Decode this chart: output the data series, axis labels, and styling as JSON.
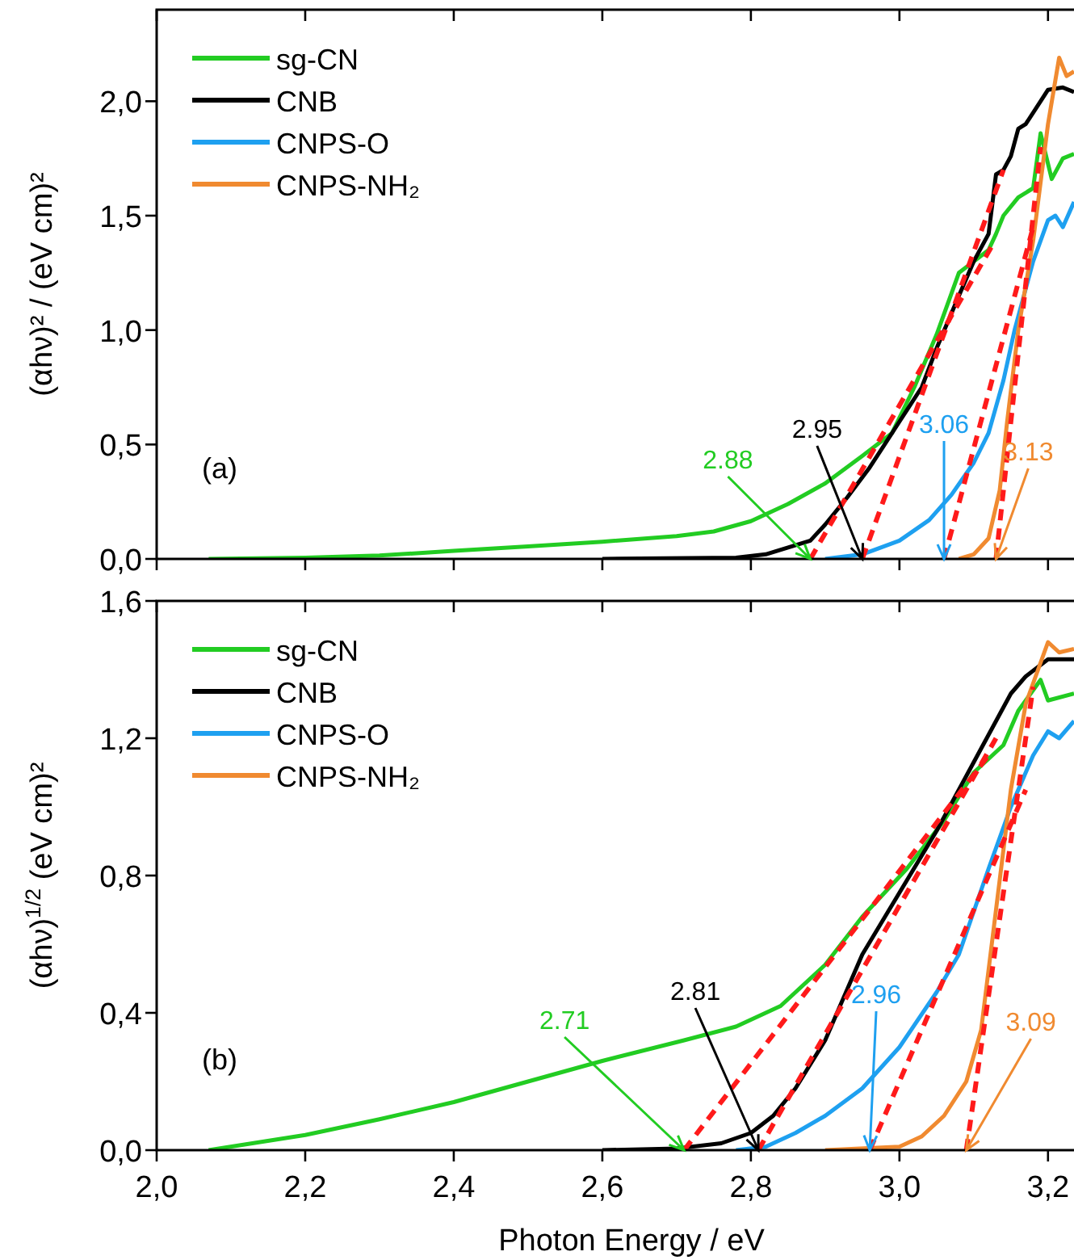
{
  "chart_data": [
    {
      "type": "line",
      "ylabel": "(αhν)² / (eV cm)²",
      "xlim": [
        2.0,
        3.235
      ],
      "ylim": [
        0,
        2.4
      ],
      "xticks": [
        2.0,
        2.2,
        2.4,
        2.6,
        2.8,
        3.0,
        3.2
      ],
      "yticks": [
        {
          "value": 0,
          "label": "0,0"
        },
        {
          "value": 0.5,
          "label": "0,5"
        },
        {
          "value": 1.0,
          "label": "1,0"
        },
        {
          "value": 1.5,
          "label": "1,5"
        },
        {
          "value": 2.0,
          "label": "2,0"
        }
      ],
      "tick_labels": "y",
      "legend": "top left",
      "series": [
        {
          "name": "sg-CN",
          "color": "#22cc22",
          "x": [
            2.07,
            2.2,
            2.3,
            2.4,
            2.5,
            2.6,
            2.7,
            2.75,
            2.8,
            2.85,
            2.9,
            2.95,
            2.99,
            3.02,
            3.05,
            3.08,
            3.1,
            3.12,
            3.13,
            3.14,
            3.16,
            3.18,
            3.19,
            3.205,
            3.22,
            3.235
          ],
          "values": [
            0,
            0.005,
            0.015,
            0.035,
            0.055,
            0.075,
            0.1,
            0.12,
            0.165,
            0.24,
            0.33,
            0.45,
            0.55,
            0.75,
            0.98,
            1.25,
            1.3,
            1.35,
            1.42,
            1.5,
            1.58,
            1.62,
            1.86,
            1.66,
            1.75,
            1.77
          ]
        },
        {
          "name": "CNB",
          "color": "#000000",
          "x": [
            2.6,
            2.78,
            2.82,
            2.85,
            2.88,
            2.9,
            2.93,
            2.96,
            2.98,
            3.0,
            3.03,
            3.05,
            3.08,
            3.1,
            3.12,
            3.13,
            3.14,
            3.15,
            3.16,
            3.17,
            3.19,
            3.2,
            3.22,
            3.235
          ],
          "values": [
            0,
            0.005,
            0.02,
            0.05,
            0.08,
            0.15,
            0.27,
            0.4,
            0.5,
            0.6,
            0.75,
            0.92,
            1.15,
            1.3,
            1.42,
            1.68,
            1.7,
            1.76,
            1.88,
            1.9,
            2.0,
            2.05,
            2.06,
            2.04
          ]
        },
        {
          "name": "CNPS-O",
          "color": "#1ea0f0",
          "x": [
            2.9,
            2.95,
            3.0,
            3.04,
            3.07,
            3.1,
            3.12,
            3.14,
            3.155,
            3.17,
            3.18,
            3.2,
            3.21,
            3.22,
            3.235
          ],
          "values": [
            0,
            0.02,
            0.08,
            0.17,
            0.28,
            0.42,
            0.55,
            0.78,
            1.0,
            1.18,
            1.3,
            1.48,
            1.5,
            1.45,
            1.56
          ]
        },
        {
          "name": "CNPS-NH₂",
          "color": "#f08a30",
          "x": [
            3.08,
            3.1,
            3.12,
            3.135,
            3.145,
            3.16,
            3.18,
            3.2,
            3.215,
            3.225,
            3.235
          ],
          "values": [
            0,
            0.02,
            0.09,
            0.3,
            0.6,
            1.0,
            1.39,
            1.9,
            2.19,
            2.11,
            2.13
          ]
        },
        {
          "type": "line",
          "color": "#ff1a1a",
          "line_style": "dashed",
          "x": [
            2.88,
            3.125
          ],
          "values": [
            0,
            1.37
          ]
        },
        {
          "type": "line",
          "color": "#ff1a1a",
          "line_style": "dashed",
          "x": [
            2.95,
            3.14
          ],
          "values": [
            0,
            1.7
          ]
        },
        {
          "type": "line",
          "color": "#ff1a1a",
          "line_style": "dashed",
          "x": [
            3.06,
            3.18
          ],
          "values": [
            0,
            1.45
          ]
        },
        {
          "type": "line",
          "color": "#ff1a1a",
          "line_style": "dashed",
          "x": [
            3.13,
            3.19
          ],
          "values": [
            0,
            1.8
          ]
        }
      ],
      "annotations": [
        "(a)",
        {
          "text": "2.88",
          "x": 2.88,
          "y": 0
        },
        {
          "text": "2.95",
          "x": 2.95,
          "y": 0
        },
        {
          "text": "3.06",
          "x": 3.06,
          "y": 0
        },
        {
          "text": "3.13",
          "x": 3.13,
          "y": 0
        }
      ]
    },
    {
      "type": "line",
      "xlabel": "Photon Energy / eV",
      "ylabel": "(αhν)$^{1/2}$ (eV cm)²",
      "xlim": [
        2.0,
        3.235
      ],
      "ylim": [
        0,
        1.6
      ],
      "xticks": [
        {
          "value": 2.0,
          "label": "2,0"
        },
        {
          "value": 2.2,
          "label": "2,2"
        },
        {
          "value": 2.4,
          "label": "2,4"
        },
        {
          "value": 2.6,
          "label": "2,6"
        },
        {
          "value": 2.8,
          "label": "2,8"
        },
        {
          "value": 3.0,
          "label": "3,0"
        },
        {
          "value": 3.2,
          "label": "3,2"
        }
      ],
      "yticks": [
        {
          "value": 0,
          "label": "0,0"
        },
        {
          "value": 0.4,
          "label": "0,4"
        },
        {
          "value": 0.8,
          "label": "0,8"
        },
        {
          "value": 1.2,
          "label": "1,2"
        },
        {
          "value": 1.6,
          "label": "1,6"
        }
      ],
      "legend": "top left",
      "series": [
        {
          "name": "sg-CN",
          "color": "#22cc22",
          "x": [
            2.07,
            2.2,
            2.3,
            2.4,
            2.5,
            2.6,
            2.71,
            2.78,
            2.84,
            2.9,
            2.95,
            3.01,
            3.06,
            3.1,
            3.14,
            3.16,
            3.19,
            3.2,
            3.235
          ],
          "values": [
            0,
            0.044,
            0.09,
            0.14,
            0.2,
            0.26,
            0.32,
            0.36,
            0.42,
            0.54,
            0.68,
            0.82,
            0.96,
            1.1,
            1.18,
            1.28,
            1.37,
            1.31,
            1.33
          ]
        },
        {
          "name": "CNB",
          "color": "#000000",
          "x": [
            2.6,
            2.7,
            2.76,
            2.8,
            2.83,
            2.86,
            2.9,
            2.93,
            2.95,
            3.0,
            3.05,
            3.1,
            3.13,
            3.15,
            3.17,
            3.2,
            3.235
          ],
          "values": [
            0,
            0.005,
            0.02,
            0.05,
            0.1,
            0.18,
            0.32,
            0.47,
            0.57,
            0.75,
            0.93,
            1.13,
            1.25,
            1.33,
            1.38,
            1.43,
            1.43
          ]
        },
        {
          "name": "CNPS-O",
          "color": "#1ea0f0",
          "x": [
            2.78,
            2.82,
            2.86,
            2.9,
            2.95,
            3.0,
            3.05,
            3.08,
            3.12,
            3.15,
            3.18,
            3.2,
            3.215,
            3.235
          ],
          "values": [
            0,
            0.01,
            0.05,
            0.1,
            0.18,
            0.3,
            0.46,
            0.57,
            0.82,
            1.0,
            1.15,
            1.22,
            1.2,
            1.25
          ]
        },
        {
          "name": "CNPS-NH₂",
          "color": "#f08a30",
          "x": [
            2.9,
            3.0,
            3.03,
            3.06,
            3.09,
            3.11,
            3.13,
            3.15,
            3.17,
            3.2,
            3.215,
            3.235
          ],
          "values": [
            0,
            0.01,
            0.04,
            0.1,
            0.2,
            0.35,
            0.7,
            1.05,
            1.3,
            1.48,
            1.45,
            1.46
          ]
        },
        {
          "type": "line",
          "color": "#ff1a1a",
          "line_style": "dashed",
          "x": [
            2.71,
            3.12
          ],
          "values": [
            0,
            1.15
          ]
        },
        {
          "type": "line",
          "color": "#ff1a1a",
          "line_style": "dashed",
          "x": [
            2.81,
            3.13
          ],
          "values": [
            0,
            1.2
          ]
        },
        {
          "type": "line",
          "color": "#ff1a1a",
          "line_style": "dashed",
          "x": [
            2.96,
            3.17
          ],
          "values": [
            0,
            1.05
          ]
        },
        {
          "type": "line",
          "color": "#ff1a1a",
          "line_style": "dashed",
          "x": [
            3.09,
            3.18
          ],
          "values": [
            0,
            1.35
          ]
        }
      ],
      "annotations": [
        "(b)",
        {
          "text": "2.71",
          "x": 2.71,
          "y": 0
        },
        {
          "text": "2.81",
          "x": 2.81,
          "y": 0
        },
        {
          "text": "2.96",
          "x": 2.96,
          "y": 0
        },
        {
          "text": "3.09",
          "x": 3.09,
          "y": 0
        }
      ]
    }
  ]
}
